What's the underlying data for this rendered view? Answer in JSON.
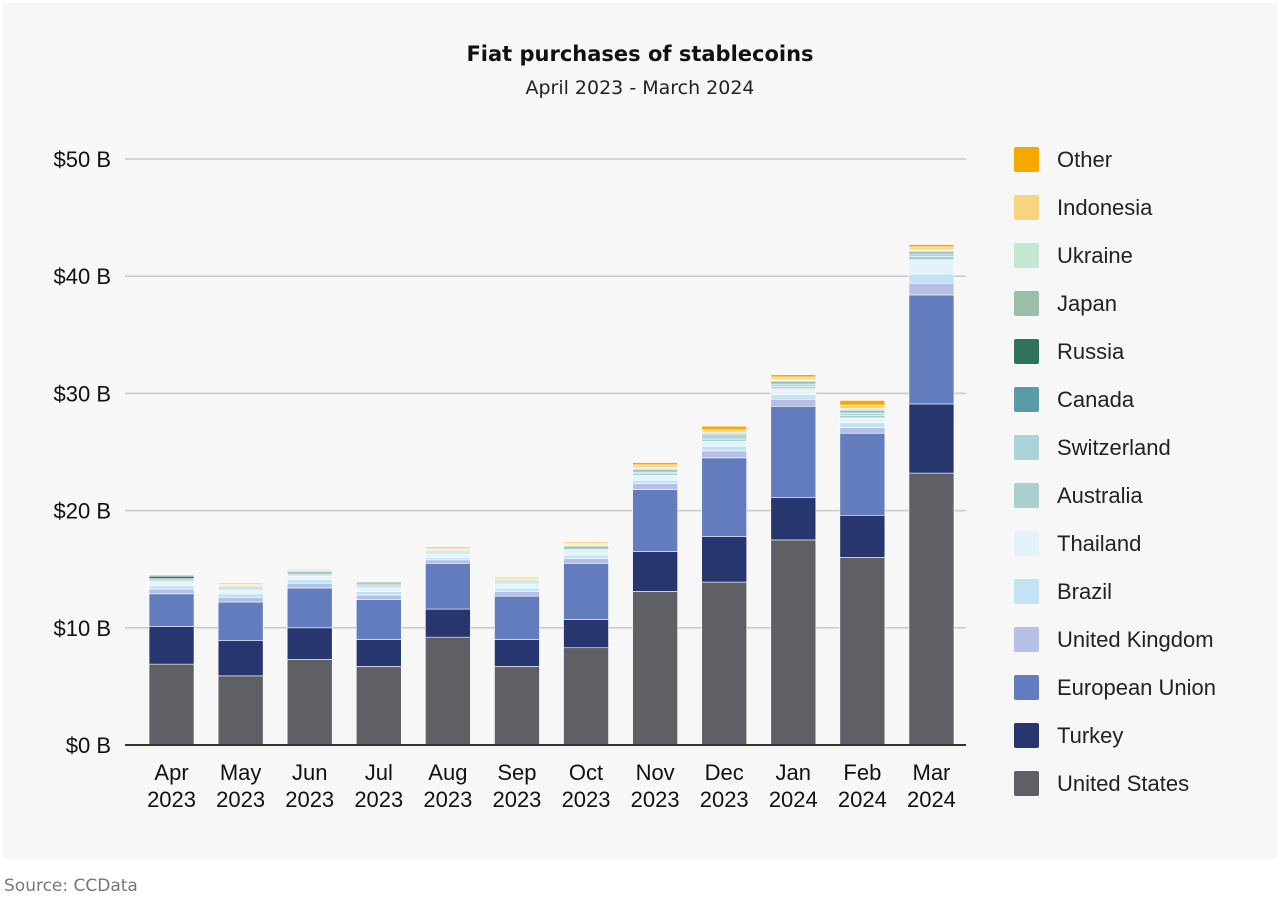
{
  "chart_data": {
    "type": "bar",
    "stacked": true,
    "title": "Fiat purchases of stablecoins",
    "subtitle": "April 2023 - March 2024",
    "source": "Source: CCData",
    "categories": [
      [
        "Apr",
        "2023"
      ],
      [
        "May",
        "2023"
      ],
      [
        "Jun",
        "2023"
      ],
      [
        "Jul",
        "2023"
      ],
      [
        "Aug",
        "2023"
      ],
      [
        "Sep",
        "2023"
      ],
      [
        "Oct",
        "2023"
      ],
      [
        "Nov",
        "2023"
      ],
      [
        "Dec",
        "2023"
      ],
      [
        "Jan",
        "2024"
      ],
      [
        "Feb",
        "2024"
      ],
      [
        "Mar",
        "2024"
      ]
    ],
    "y_ticks": [
      "$0 B",
      "$10 B",
      "$20 B",
      "$30 B",
      "$40 B",
      "$50 B"
    ],
    "ylim": [
      0,
      50
    ],
    "grid": true,
    "legend_position": "right",
    "series": [
      {
        "name": "United States",
        "color": "#5f5f66",
        "values": [
          6.9,
          5.9,
          7.3,
          6.7,
          9.2,
          6.7,
          8.3,
          13.1,
          13.9,
          17.5,
          16.0,
          23.2
        ]
      },
      {
        "name": "Turkey",
        "color": "#283670",
        "values": [
          3.2,
          3.0,
          2.7,
          2.3,
          2.4,
          2.3,
          2.4,
          3.4,
          3.9,
          3.6,
          3.6,
          5.9
        ]
      },
      {
        "name": "European Union",
        "color": "#637cbd",
        "values": [
          2.8,
          3.3,
          3.4,
          3.4,
          3.9,
          3.7,
          4.8,
          5.3,
          6.7,
          7.8,
          7.0,
          9.3
        ]
      },
      {
        "name": "United Kingdom",
        "color": "#b6c0e6",
        "values": [
          0.4,
          0.4,
          0.4,
          0.4,
          0.3,
          0.4,
          0.4,
          0.5,
          0.6,
          0.6,
          0.5,
          1.0
        ]
      },
      {
        "name": "Brazil",
        "color": "#c3e3f4",
        "values": [
          0.3,
          0.3,
          0.3,
          0.3,
          0.2,
          0.3,
          0.3,
          0.3,
          0.4,
          0.4,
          0.4,
          0.8
        ]
      },
      {
        "name": "Thailand",
        "color": "#e4f2fb",
        "values": [
          0.3,
          0.3,
          0.3,
          0.3,
          0.3,
          0.3,
          0.3,
          0.4,
          0.4,
          0.5,
          0.4,
          1.2
        ]
      },
      {
        "name": "Australia",
        "color": "#a9cfcf",
        "values": [
          0.1,
          0.1,
          0.1,
          0.1,
          0.1,
          0.1,
          0.1,
          0.2,
          0.2,
          0.2,
          0.2,
          0.3
        ]
      },
      {
        "name": "Switzerland",
        "color": "#a9d3d6",
        "values": [
          0.1,
          0.1,
          0.1,
          0.1,
          0.1,
          0.1,
          0.1,
          0.1,
          0.2,
          0.2,
          0.2,
          0.2
        ]
      },
      {
        "name": "Canada",
        "color": "#5a9ba8",
        "values": [
          0.1,
          0.0,
          0.1,
          0.1,
          0.0,
          0.0,
          0.1,
          0.1,
          0.1,
          0.1,
          0.1,
          0.1
        ]
      },
      {
        "name": "Russia",
        "color": "#2f735f",
        "values": [
          0.2,
          0.0,
          0.1,
          0.1,
          0.0,
          0.0,
          0.1,
          0.1,
          0.1,
          0.1,
          0.1,
          0.1
        ]
      },
      {
        "name": "Japan",
        "color": "#9bbdac",
        "values": [
          0.1,
          0.1,
          0.1,
          0.1,
          0.1,
          0.1,
          0.1,
          0.1,
          0.1,
          0.1,
          0.1,
          0.1
        ]
      },
      {
        "name": "Ukraine",
        "color": "#c4e6d4",
        "values": [
          0.0,
          0.1,
          0.1,
          0.0,
          0.1,
          0.1,
          0.1,
          0.1,
          0.1,
          0.1,
          0.1,
          0.1
        ]
      },
      {
        "name": "Indonesia",
        "color": "#f8d47f",
        "values": [
          0.0,
          0.1,
          0.0,
          0.0,
          0.1,
          0.1,
          0.1,
          0.2,
          0.2,
          0.2,
          0.3,
          0.2
        ]
      },
      {
        "name": "Other",
        "color": "#f5a800",
        "values": [
          0.0,
          0.1,
          0.0,
          0.0,
          0.1,
          0.1,
          0.1,
          0.2,
          0.3,
          0.2,
          0.4,
          0.2
        ]
      }
    ],
    "legend_order": [
      "Other",
      "Indonesia",
      "Ukraine",
      "Japan",
      "Russia",
      "Canada",
      "Switzerland",
      "Australia",
      "Thailand",
      "Brazil",
      "United Kingdom",
      "European Union",
      "Turkey",
      "United States"
    ]
  }
}
